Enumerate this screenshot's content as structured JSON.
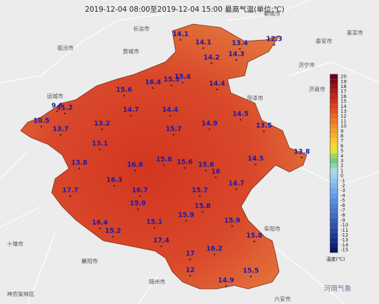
{
  "title": "2019-12-04 08:00至2019-12-04 15:00 最高气温(单位:℃)",
  "stations": [
    14.1,
    14.1,
    13.4,
    12.3,
    14.2,
    14.3,
    16.4,
    15.3,
    15.4,
    15.6,
    14.4,
    9.6,
    11.2,
    14.7,
    14.4,
    14.5,
    10.5,
    13.7,
    13.2,
    15.7,
    14.9,
    13.5,
    13.1,
    13.8,
    13.8,
    16.6,
    15.8,
    15.6,
    15.6,
    16,
    14.5,
    16.3,
    14.7,
    17.7,
    16.7,
    15.7,
    15.9,
    15.8,
    15.9,
    16.4,
    15.1,
    15.9,
    15.2,
    15.8,
    17.4,
    16.2,
    17,
    12,
    15.5,
    14.9
  ],
  "places": [
    "长治市",
    "晋城市",
    "临汾市",
    "运城市",
    "菏泽市",
    "济宁市",
    "泰安市",
    "济南市",
    "聊城市",
    "十堰市",
    "襄阳市",
    "随州市",
    "阜阳市",
    "六安市",
    "莱芜市",
    "神农架林区"
  ],
  "colorbar": {
    "ticks": [
      20,
      19,
      18,
      17,
      16,
      15,
      14,
      13,
      12,
      11,
      10,
      9,
      8,
      7,
      6,
      5,
      4,
      3,
      2,
      1,
      0,
      -1,
      -2,
      -3,
      -4,
      -5,
      -6,
      -7,
      -8,
      -9,
      -10,
      -11,
      -12,
      -13,
      -14,
      -15
    ],
    "label": "温度(℃)"
  },
  "watermark": "河南气象"
}
